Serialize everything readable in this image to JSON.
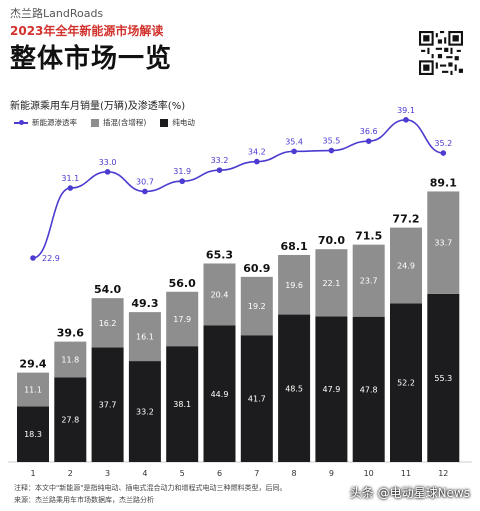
{
  "header": {
    "brand": "杰兰路LandRoads",
    "subtitle": "2023年全年新能源市场解读",
    "title": "整体市场一览"
  },
  "chart_data": {
    "type": "bar",
    "title": "新能源乘用车月销量(万辆)及渗透率(%)",
    "categories": [
      "1",
      "2",
      "3",
      "4",
      "5",
      "6",
      "7",
      "8",
      "9",
      "10",
      "11",
      "12"
    ],
    "series": [
      {
        "name": "纯电动",
        "values": [
          18.3,
          27.8,
          37.7,
          33.2,
          38.1,
          44.9,
          41.7,
          48.5,
          47.9,
          47.8,
          52.2,
          55.3
        ]
      },
      {
        "name": "插混(含增程)",
        "values": [
          11.1,
          11.8,
          16.2,
          16.1,
          17.9,
          20.4,
          19.2,
          19.6,
          22.1,
          23.7,
          24.9,
          33.7
        ]
      }
    ],
    "totals": [
      "29.4",
      "39.6",
      "54.0",
      "49.3",
      "56.0",
      "65.3",
      "60.9",
      "68.1",
      "70.0",
      "71.5",
      "77.2",
      "89.1"
    ],
    "line_series": {
      "name": "新能源渗透率",
      "values": [
        22.9,
        31.1,
        33.0,
        30.7,
        31.9,
        33.2,
        34.2,
        35.4,
        35.5,
        36.6,
        39.1,
        35.2
      ]
    },
    "stacked": true,
    "colors": {
      "bev": "#1c1c1e",
      "phev": "#8e8e8e",
      "line": "#4b3bd0",
      "subtitle": "#d2322d"
    }
  },
  "notes": [
    "注释：本文中\"新能源\"是指纯电动、插电式混合动力和增程式电动三种燃料类型，后同。",
    "来源：杰兰路乘用车市场数据库，杰兰路分析"
  ],
  "watermark": "头条 @电动星球News"
}
